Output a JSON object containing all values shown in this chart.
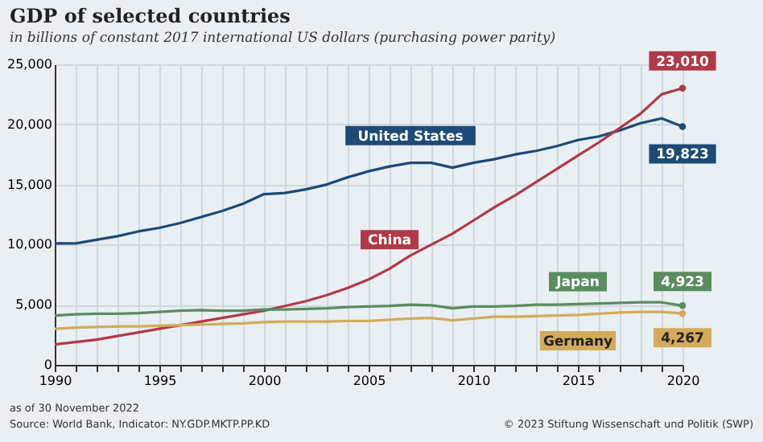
{
  "chart_data": {
    "type": "line",
    "title": "GDP of selected countries",
    "subtitle": "in billions of constant 2017 international US dollars (purchasing power parity)",
    "x": [
      1990,
      1991,
      1992,
      1993,
      1994,
      1995,
      1996,
      1997,
      1998,
      1999,
      2000,
      2001,
      2002,
      2003,
      2004,
      2005,
      2006,
      2007,
      2008,
      2009,
      2010,
      2011,
      2012,
      2013,
      2014,
      2015,
      2016,
      2017,
      2018,
      2019,
      2020
    ],
    "series": [
      {
        "name": "United States",
        "color": "#1d4a76",
        "values": [
          10100,
          10100,
          10400,
          10700,
          11100,
          11400,
          11800,
          12300,
          12800,
          13400,
          14200,
          14300,
          14600,
          15000,
          15600,
          16100,
          16500,
          16800,
          16800,
          16400,
          16800,
          17100,
          17500,
          17800,
          18200,
          18700,
          19000,
          19500,
          20100,
          20500,
          19823
        ],
        "value_labels": [
          null,
          null,
          null,
          null,
          null,
          null,
          null,
          null,
          null,
          null,
          null,
          null,
          null,
          null,
          null,
          null,
          null,
          null,
          null,
          null,
          null,
          null,
          null,
          null,
          null,
          null,
          null,
          null,
          null,
          null,
          "19,823"
        ]
      },
      {
        "name": "China",
        "color": "#b03a48",
        "values": [
          1700,
          1900,
          2100,
          2400,
          2700,
          3000,
          3300,
          3600,
          3900,
          4200,
          4500,
          4900,
          5300,
          5800,
          6400,
          7100,
          8000,
          9100,
          10000,
          10900,
          12000,
          13100,
          14100,
          15200,
          16300,
          17400,
          18500,
          19700,
          20900,
          22500,
          23010
        ],
        "value_labels": [
          null,
          null,
          null,
          null,
          null,
          null,
          null,
          null,
          null,
          null,
          null,
          null,
          null,
          null,
          null,
          null,
          null,
          null,
          null,
          null,
          null,
          null,
          null,
          null,
          null,
          null,
          null,
          null,
          null,
          null,
          "23,010"
        ]
      },
      {
        "name": "Japan",
        "color": "#5a8c5f",
        "values": [
          4100,
          4200,
          4250,
          4250,
          4300,
          4400,
          4500,
          4550,
          4500,
          4500,
          4600,
          4600,
          4650,
          4700,
          4800,
          4850,
          4900,
          5000,
          4950,
          4700,
          4850,
          4850,
          4900,
          5000,
          5000,
          5050,
          5100,
          5150,
          5200,
          5200,
          4923
        ],
        "value_labels": [
          null,
          null,
          null,
          null,
          null,
          null,
          null,
          null,
          null,
          null,
          null,
          null,
          null,
          null,
          null,
          null,
          null,
          null,
          null,
          null,
          null,
          null,
          null,
          null,
          null,
          null,
          null,
          null,
          null,
          null,
          "4,923"
        ]
      },
      {
        "name": "Germany",
        "color": "#d4aa5c",
        "values": [
          3000,
          3100,
          3150,
          3200,
          3200,
          3250,
          3300,
          3350,
          3400,
          3450,
          3550,
          3600,
          3600,
          3600,
          3650,
          3650,
          3750,
          3850,
          3900,
          3700,
          3850,
          4000,
          4000,
          4050,
          4100,
          4150,
          4250,
          4350,
          4400,
          4400,
          4267
        ],
        "value_labels": [
          null,
          null,
          null,
          null,
          null,
          null,
          null,
          null,
          null,
          null,
          null,
          null,
          null,
          null,
          null,
          null,
          null,
          null,
          null,
          null,
          null,
          null,
          null,
          null,
          null,
          null,
          null,
          null,
          null,
          null,
          "4,267"
        ]
      }
    ],
    "xlim": [
      1990,
      2020
    ],
    "xticks": [
      1990,
      {
        "value": 1991,
        "label": null
      },
      {
        "value": 1992,
        "label": null
      },
      {
        "value": 1993,
        "label": null
      },
      {
        "value": 1994,
        "label": null
      },
      1995,
      {
        "value": 1996,
        "label": null
      },
      {
        "value": 1997,
        "label": null
      },
      {
        "value": 1998,
        "label": null
      },
      {
        "value": 1999,
        "label": null
      },
      2000,
      {
        "value": 2001,
        "label": null
      },
      {
        "value": 2002,
        "label": null
      },
      {
        "value": 2003,
        "label": null
      },
      {
        "value": 2004,
        "label": null
      },
      2005,
      {
        "value": 2006,
        "label": null
      },
      {
        "value": 2007,
        "label": null
      },
      {
        "value": 2008,
        "label": null
      },
      {
        "value": 2009,
        "label": null
      },
      2010,
      {
        "value": 2011,
        "label": null
      },
      {
        "value": 2012,
        "label": null
      },
      {
        "value": 2013,
        "label": null
      },
      {
        "value": 2014,
        "label": null
      },
      2015,
      {
        "value": 2016,
        "label": null
      },
      {
        "value": 2017,
        "label": null
      },
      {
        "value": 2018,
        "label": null
      },
      {
        "value": 2019,
        "label": null
      },
      2020
    ],
    "ylim": [
      0,
      25000
    ],
    "yticks": [
      0,
      {
        "value": 5000,
        "label": "5,000"
      },
      {
        "value": 10000,
        "label": "10,000"
      },
      {
        "value": 15000,
        "label": "15,000"
      },
      {
        "value": 20000,
        "label": "20,000"
      },
      {
        "value": 25000,
        "label": "25,000"
      }
    ],
    "grid": true,
    "legend": false,
    "annotations": [
      "as of 30 November 2022",
      "Source: World Bank, Indicator: NY.GDP.MKTP.PP.KD",
      "© 2023 Stiftung Wissenschaft und Politik (SWP)"
    ]
  }
}
